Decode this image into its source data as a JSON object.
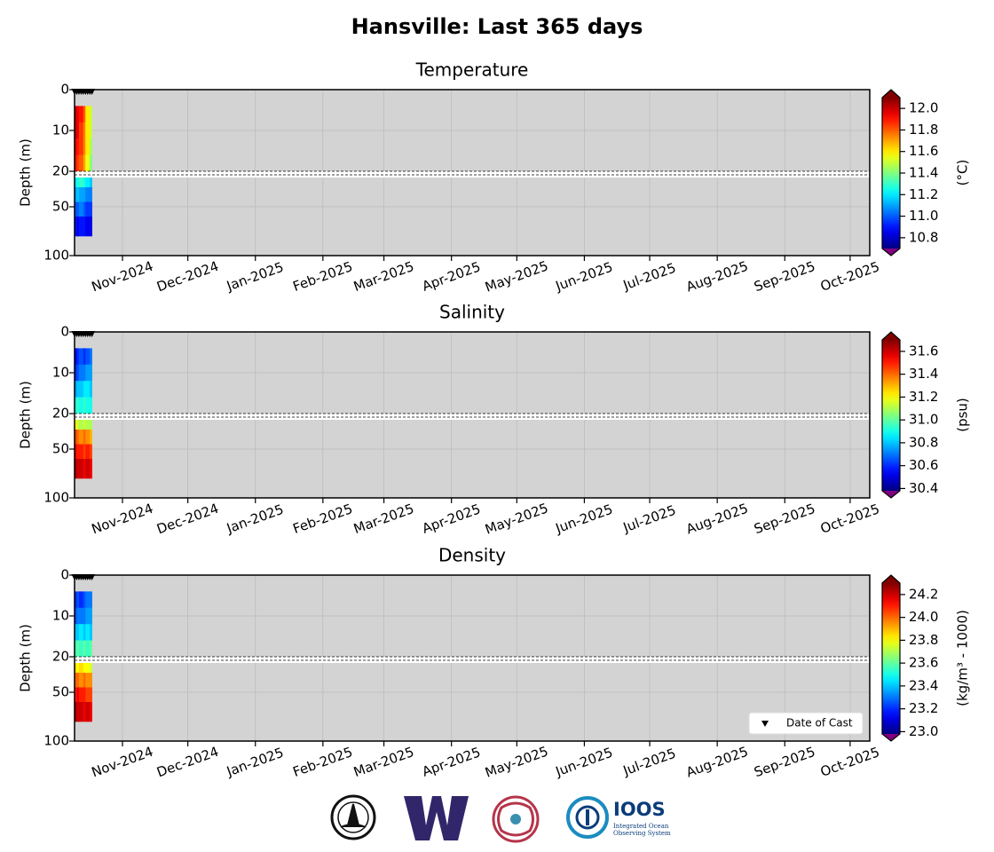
{
  "title": "Hansville: Last 365 days",
  "logo_text": {
    "name": "IOOS",
    "sub1": "Integrated Ocean",
    "sub2": "Observing System"
  },
  "chart_data": [
    {
      "type": "heatmap",
      "title": "Temperature",
      "ylabel": "Depth (m)",
      "colorbar_label": "(°C)",
      "colormap": "jet",
      "grid": true,
      "xlim": [
        "2024-10-10",
        "2025-10-10"
      ],
      "xticks": [
        {
          "value": "2024-11-01",
          "label": "Nov-2024"
        },
        {
          "value": "2024-12-01",
          "label": "Dec-2024"
        },
        {
          "value": "2025-01-01",
          "label": "Jan-2025"
        },
        {
          "value": "2025-02-01",
          "label": "Feb-2025"
        },
        {
          "value": "2025-03-01",
          "label": "Mar-2025"
        },
        {
          "value": "2025-04-01",
          "label": "Apr-2025"
        },
        {
          "value": "2025-05-01",
          "label": "May-2025"
        },
        {
          "value": "2025-06-01",
          "label": "Jun-2025"
        },
        {
          "value": "2025-07-01",
          "label": "Jul-2025"
        },
        {
          "value": "2025-08-01",
          "label": "Aug-2025"
        },
        {
          "value": "2025-09-01",
          "label": "Sep-2025"
        },
        {
          "value": "2025-10-01",
          "label": "Oct-2025"
        }
      ],
      "ylim": [
        0,
        100
      ],
      "ybreak": 20,
      "yticks": [
        0,
        10,
        20,
        50,
        100
      ],
      "casts": [
        "2024-10-10",
        "2024-10-11",
        "2024-10-12",
        "2024-10-13",
        "2024-10-14",
        "2024-10-15",
        "2024-10-16",
        "2024-10-17",
        "2024-10-18"
      ],
      "x_edges": [
        "2024-10-10",
        "2024-10-11",
        "2024-10-12",
        "2024-10-14",
        "2024-10-15",
        "2024-10-17",
        "2024-10-18"
      ],
      "depth_edges": [
        4,
        8,
        12,
        16,
        20,
        30,
        45,
        60,
        80
      ],
      "values": [
        [
          12.0,
          11.95,
          11.9,
          11.8,
          11.6,
          11.5
        ],
        [
          12.0,
          11.95,
          11.85,
          11.75,
          11.6,
          11.5
        ],
        [
          11.95,
          11.9,
          11.85,
          11.75,
          11.6,
          11.45
        ],
        [
          11.9,
          11.85,
          11.8,
          11.7,
          11.55,
          11.4
        ],
        [
          11.2,
          11.25,
          11.3,
          11.25,
          11.2,
          11.15
        ],
        [
          11.1,
          11.15,
          11.1,
          11.1,
          11.05,
          11.05
        ],
        [
          11.0,
          11.0,
          11.05,
          11.0,
          10.95,
          10.95
        ],
        [
          10.9,
          10.85,
          10.9,
          10.9,
          10.85,
          10.85
        ]
      ],
      "clim": [
        10.7,
        12.1
      ],
      "cticks": [
        {
          "value": 10.8,
          "label": "10.8"
        },
        {
          "value": 11.0,
          "label": "11.0"
        },
        {
          "value": 11.2,
          "label": "11.2"
        },
        {
          "value": 11.4,
          "label": "11.4"
        },
        {
          "value": 11.6,
          "label": "11.6"
        },
        {
          "value": 11.8,
          "label": "11.8"
        },
        {
          "value": 12.0,
          "label": "12.0"
        }
      ]
    },
    {
      "type": "heatmap",
      "title": "Salinity",
      "ylabel": "Depth (m)",
      "colorbar_label": "(psu)",
      "colormap": "jet",
      "grid": true,
      "xlim": [
        "2024-10-10",
        "2025-10-10"
      ],
      "xticks": [
        {
          "value": "2024-11-01",
          "label": "Nov-2024"
        },
        {
          "value": "2024-12-01",
          "label": "Dec-2024"
        },
        {
          "value": "2025-01-01",
          "label": "Jan-2025"
        },
        {
          "value": "2025-02-01",
          "label": "Feb-2025"
        },
        {
          "value": "2025-03-01",
          "label": "Mar-2025"
        },
        {
          "value": "2025-04-01",
          "label": "Apr-2025"
        },
        {
          "value": "2025-05-01",
          "label": "May-2025"
        },
        {
          "value": "2025-06-01",
          "label": "Jun-2025"
        },
        {
          "value": "2025-07-01",
          "label": "Jul-2025"
        },
        {
          "value": "2025-08-01",
          "label": "Aug-2025"
        },
        {
          "value": "2025-09-01",
          "label": "Sep-2025"
        },
        {
          "value": "2025-10-01",
          "label": "Oct-2025"
        }
      ],
      "ylim": [
        0,
        100
      ],
      "ybreak": 20,
      "yticks": [
        0,
        10,
        20,
        50,
        100
      ],
      "casts": [
        "2024-10-10",
        "2024-10-11",
        "2024-10-12",
        "2024-10-13",
        "2024-10-14",
        "2024-10-15",
        "2024-10-16",
        "2024-10-17",
        "2024-10-18"
      ],
      "x_edges": [
        "2024-10-10",
        "2024-10-11",
        "2024-10-12",
        "2024-10-14",
        "2024-10-15",
        "2024-10-17",
        "2024-10-18"
      ],
      "depth_edges": [
        4,
        8,
        12,
        16,
        20,
        30,
        45,
        60,
        80
      ],
      "values": [
        [
          30.55,
          30.6,
          30.65,
          30.6,
          30.65,
          30.7
        ],
        [
          30.6,
          30.65,
          30.7,
          30.7,
          30.75,
          30.75
        ],
        [
          30.75,
          30.8,
          30.8,
          30.85,
          30.85,
          30.8
        ],
        [
          30.9,
          30.95,
          30.9,
          30.95,
          30.9,
          30.9
        ],
        [
          31.2,
          31.15,
          31.1,
          31.15,
          31.1,
          31.1
        ],
        [
          31.45,
          31.4,
          31.35,
          31.4,
          31.35,
          31.3
        ],
        [
          31.55,
          31.5,
          31.5,
          31.45,
          31.5,
          31.45
        ],
        [
          31.65,
          31.6,
          31.6,
          31.55,
          31.6,
          31.55
        ]
      ],
      "clim": [
        30.38,
        31.7
      ],
      "cticks": [
        {
          "value": 30.4,
          "label": "30.4"
        },
        {
          "value": 30.6,
          "label": "30.6"
        },
        {
          "value": 30.8,
          "label": "30.8"
        },
        {
          "value": 31.0,
          "label": "31.0"
        },
        {
          "value": 31.2,
          "label": "31.2"
        },
        {
          "value": 31.4,
          "label": "31.4"
        },
        {
          "value": 31.6,
          "label": "31.6"
        }
      ]
    },
    {
      "type": "heatmap",
      "title": "Density",
      "ylabel": "Depth (m)",
      "colorbar_label": "(kg/m³ - 1000)",
      "colormap": "jet",
      "grid": true,
      "legend": "Date of Cast",
      "legend_loc": "lower right",
      "xlim": [
        "2024-10-10",
        "2025-10-10"
      ],
      "xticks": [
        {
          "value": "2024-11-01",
          "label": "Nov-2024"
        },
        {
          "value": "2024-12-01",
          "label": "Dec-2024"
        },
        {
          "value": "2025-01-01",
          "label": "Jan-2025"
        },
        {
          "value": "2025-02-01",
          "label": "Feb-2025"
        },
        {
          "value": "2025-03-01",
          "label": "Mar-2025"
        },
        {
          "value": "2025-04-01",
          "label": "Apr-2025"
        },
        {
          "value": "2025-05-01",
          "label": "May-2025"
        },
        {
          "value": "2025-06-01",
          "label": "Jun-2025"
        },
        {
          "value": "2025-07-01",
          "label": "Jul-2025"
        },
        {
          "value": "2025-08-01",
          "label": "Aug-2025"
        },
        {
          "value": "2025-09-01",
          "label": "Sep-2025"
        },
        {
          "value": "2025-10-01",
          "label": "Oct-2025"
        }
      ],
      "ylim": [
        0,
        100
      ],
      "ybreak": 20,
      "yticks": [
        0,
        10,
        20,
        50,
        100
      ],
      "casts": [
        "2024-10-10",
        "2024-10-11",
        "2024-10-12",
        "2024-10-13",
        "2024-10-14",
        "2024-10-15",
        "2024-10-16",
        "2024-10-17",
        "2024-10-18"
      ],
      "x_edges": [
        "2024-10-10",
        "2024-10-11",
        "2024-10-12",
        "2024-10-14",
        "2024-10-15",
        "2024-10-17",
        "2024-10-18"
      ],
      "depth_edges": [
        4,
        8,
        12,
        16,
        20,
        30,
        45,
        60,
        80
      ],
      "values": [
        [
          23.2,
          23.25,
          23.2,
          23.25,
          23.3,
          23.3
        ],
        [
          23.25,
          23.3,
          23.3,
          23.3,
          23.35,
          23.35
        ],
        [
          23.4,
          23.4,
          23.45,
          23.4,
          23.45,
          23.4
        ],
        [
          23.55,
          23.6,
          23.55,
          23.6,
          23.55,
          23.6
        ],
        [
          23.85,
          23.8,
          23.85,
          23.8,
          23.8,
          23.75
        ],
        [
          24.0,
          24.0,
          23.95,
          24.0,
          23.95,
          23.95
        ],
        [
          24.1,
          24.15,
          24.1,
          24.1,
          24.05,
          24.05
        ],
        [
          24.25,
          24.2,
          24.2,
          24.15,
          24.2,
          24.15
        ]
      ],
      "clim": [
        22.98,
        24.3
      ],
      "cticks": [
        {
          "value": 23.0,
          "label": "23.0"
        },
        {
          "value": 23.2,
          "label": "23.2"
        },
        {
          "value": 23.4,
          "label": "23.4"
        },
        {
          "value": 23.6,
          "label": "23.6"
        },
        {
          "value": 23.8,
          "label": "23.8"
        },
        {
          "value": 24.0,
          "label": "24.0"
        },
        {
          "value": 24.2,
          "label": "24.2"
        }
      ]
    }
  ]
}
